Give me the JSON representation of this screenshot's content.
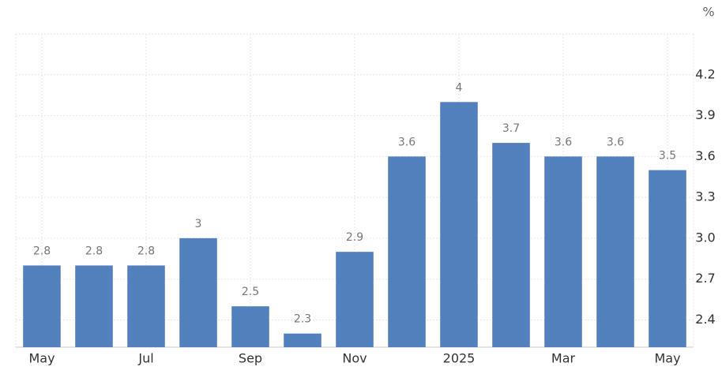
{
  "chart_data": {
    "type": "bar",
    "unit": "%",
    "categories": [
      "May",
      null,
      "Jul",
      null,
      "Sep",
      null,
      "Nov",
      null,
      "2025",
      null,
      "Mar",
      null,
      "May"
    ],
    "values": [
      2.8,
      2.8,
      2.8,
      3,
      2.5,
      2.3,
      2.9,
      3.6,
      4,
      3.7,
      3.6,
      3.6,
      3.5
    ],
    "color": "#5180bd",
    "ylim": [
      2.2,
      4.5
    ],
    "yticks": [
      2.4,
      2.7,
      {
        "value": 3,
        "label": "3.0"
      },
      3.3,
      3.6,
      3.9,
      4.2
    ],
    "grid": true
  }
}
